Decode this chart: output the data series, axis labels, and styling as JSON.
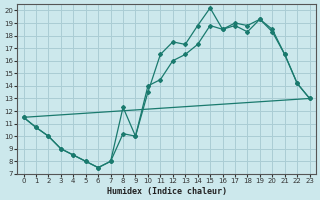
{
  "xlabel": "Humidex (Indice chaleur)",
  "bg_color": "#cce8ec",
  "grid_color": "#aacdd4",
  "line_color": "#1a7a6e",
  "xlim": [
    -0.5,
    23.5
  ],
  "ylim": [
    7,
    20.5
  ],
  "xticks": [
    0,
    1,
    2,
    3,
    4,
    5,
    6,
    7,
    8,
    9,
    10,
    11,
    12,
    13,
    14,
    15,
    16,
    17,
    18,
    19,
    20,
    21,
    22,
    23
  ],
  "yticks": [
    7,
    8,
    9,
    10,
    11,
    12,
    13,
    14,
    15,
    16,
    17,
    18,
    19,
    20
  ],
  "line1_x": [
    0,
    1,
    2,
    3,
    4,
    5,
    6,
    7,
    8,
    9,
    10,
    11,
    12,
    13,
    14,
    15,
    16,
    17,
    18,
    19,
    20,
    21,
    22,
    23
  ],
  "line1_y": [
    11.5,
    10.7,
    10.0,
    9.0,
    8.5,
    8.0,
    7.5,
    8.0,
    12.3,
    10.0,
    13.5,
    16.5,
    17.5,
    17.3,
    18.8,
    20.2,
    18.5,
    18.8,
    18.3,
    19.3,
    18.5,
    16.5,
    14.2,
    13.0
  ],
  "line2_x": [
    0,
    1,
    2,
    3,
    4,
    5,
    6,
    7,
    8,
    9,
    10,
    11,
    12,
    13,
    14,
    15,
    16,
    17,
    18,
    19,
    20,
    21,
    22,
    23
  ],
  "line2_y": [
    11.5,
    10.7,
    10.0,
    9.0,
    8.5,
    8.0,
    7.5,
    8.0,
    10.2,
    10.0,
    14.0,
    14.5,
    16.0,
    16.5,
    17.3,
    18.8,
    18.5,
    19.0,
    18.8,
    19.3,
    18.3,
    16.5,
    14.2,
    13.0
  ],
  "line3_x": [
    0,
    23
  ],
  "line3_y": [
    11.5,
    13.0
  ]
}
